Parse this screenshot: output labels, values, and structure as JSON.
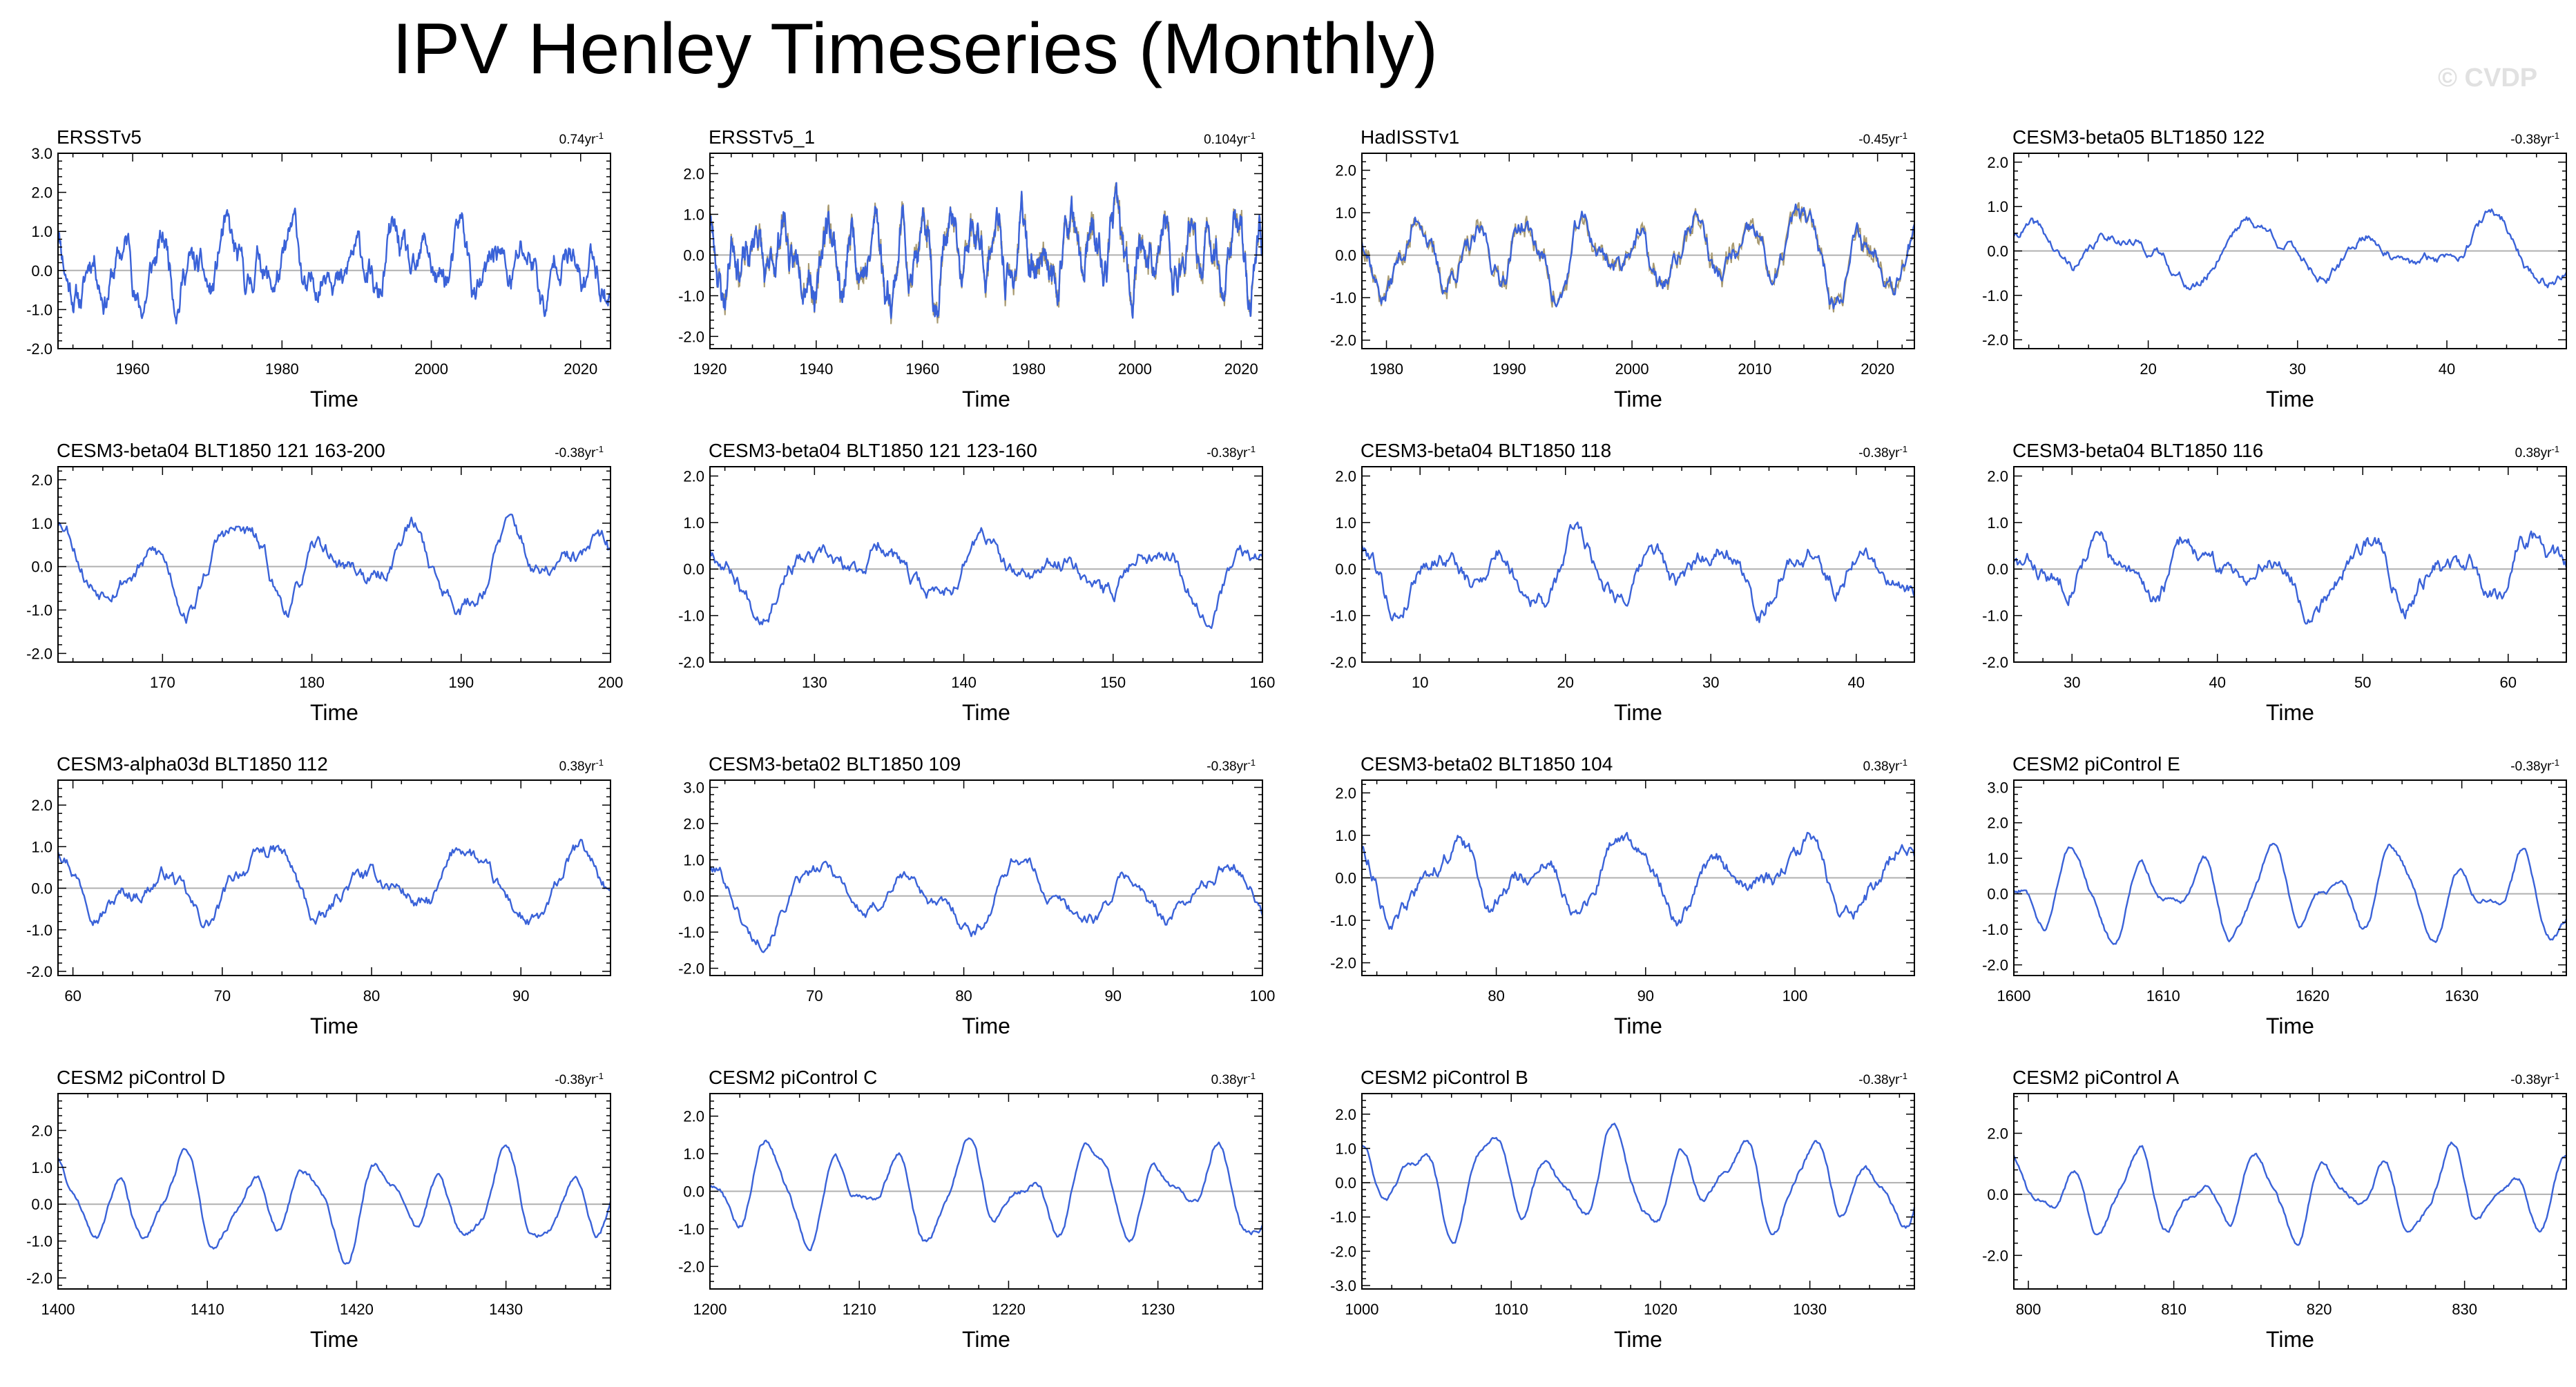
{
  "title": "IPV Henley Timeseries (Monthly)",
  "watermark": "© CVDP",
  "colors": {
    "series": "#3a62d8",
    "obs_secondary": "#a89a70",
    "zero_line": "#b0b0b0",
    "axis": "#000000"
  },
  "chart_data": [
    {
      "type": "line",
      "title": "ERSSTv5",
      "trend": "0.74yr",
      "trend_sup": "-1",
      "xlabel": "Time",
      "xlim": [
        1950,
        2024
      ],
      "ylim": [
        -2,
        3
      ],
      "xticks": [
        1960,
        1980,
        2000,
        2020
      ],
      "yticks": [
        -2,
        -1,
        0,
        1,
        2,
        3
      ],
      "ytick_labels": [
        "-2.0",
        "-1.0",
        "0.0",
        "1.0",
        "2.0",
        "3.0"
      ],
      "seed": 11,
      "amp": 0.65,
      "noise": 0.55,
      "mean_period": 4.5,
      "secondary": false
    },
    {
      "type": "line",
      "title": "ERSSTv5_1",
      "trend": "0.104yr",
      "trend_sup": "-1",
      "xlabel": "Time",
      "xlim": [
        1920,
        2024
      ],
      "ylim": [
        -2.3,
        2.5
      ],
      "xticks": [
        1920,
        1940,
        1960,
        1980,
        2000,
        2020
      ],
      "yticks": [
        -2,
        -1,
        0,
        1,
        2
      ],
      "ytick_labels": [
        "-2.0",
        "-1.0",
        "0.0",
        "1.0",
        "2.0"
      ],
      "seed": 23,
      "amp": 0.75,
      "noise": 0.6,
      "mean_period": 4.5,
      "secondary": true
    },
    {
      "type": "line",
      "title": "HadISSTv1",
      "trend": "-0.45yr",
      "trend_sup": "-1",
      "xlabel": "Time",
      "xlim": [
        1978,
        2023
      ],
      "ylim": [
        -2.2,
        2.4
      ],
      "xticks": [
        1980,
        1990,
        2000,
        2010,
        2020
      ],
      "yticks": [
        -2,
        -1,
        0,
        1,
        2
      ],
      "ytick_labels": [
        "-2.0",
        "-1.0",
        "0.0",
        "1.0",
        "2.0"
      ],
      "seed": 37,
      "amp": 0.7,
      "noise": 0.4,
      "mean_period": 4.5,
      "secondary": true
    },
    {
      "type": "line",
      "title": "CESM3-beta05 BLT1850 122",
      "trend": "-0.38yr",
      "trend_sup": "-1",
      "xlabel": "Time",
      "xlim": [
        11,
        48
      ],
      "ylim": [
        -2.2,
        2.2
      ],
      "xticks": [
        20,
        30,
        40
      ],
      "yticks": [
        -2,
        -1,
        0,
        1,
        2
      ],
      "ytick_labels": [
        "-2.0",
        "-1.0",
        "0.0",
        "1.0",
        "2.0"
      ],
      "seed": 41,
      "amp": 0.6,
      "noise": 0.18,
      "mean_period": 8,
      "secondary": false
    },
    {
      "type": "line",
      "title": "CESM3-beta04 BLT1850 121 163-200",
      "trend": "-0.38yr",
      "trend_sup": "-1",
      "xlabel": "Time",
      "xlim": [
        163,
        200
      ],
      "ylim": [
        -2.2,
        2.3
      ],
      "xticks": [
        170,
        180,
        190,
        200
      ],
      "yticks": [
        -2,
        -1,
        0,
        1,
        2
      ],
      "ytick_labels": [
        "-2.0",
        "-1.0",
        "0.0",
        "1.0",
        "2.0"
      ],
      "seed": 53,
      "amp": 0.75,
      "noise": 0.3,
      "mean_period": 6,
      "secondary": false
    },
    {
      "type": "line",
      "title": "CESM3-beta04 BLT1850 121 123-160",
      "trend": "-0.38yr",
      "trend_sup": "-1",
      "xlabel": "Time",
      "xlim": [
        123,
        160
      ],
      "ylim": [
        -2.0,
        2.2
      ],
      "xticks": [
        130,
        140,
        150,
        160
      ],
      "yticks": [
        -2,
        -1,
        0,
        1,
        2
      ],
      "ytick_labels": [
        "-2.0",
        "-1.0",
        "0.0",
        "1.0",
        "2.0"
      ],
      "seed": 67,
      "amp": 0.55,
      "noise": 0.28,
      "mean_period": 6,
      "secondary": false
    },
    {
      "type": "line",
      "title": "CESM3-beta04 BLT1850 118",
      "trend": "-0.38yr",
      "trend_sup": "-1",
      "xlabel": "Time",
      "xlim": [
        6,
        44
      ],
      "ylim": [
        -2.0,
        2.2
      ],
      "xticks": [
        10,
        20,
        30,
        40
      ],
      "yticks": [
        -2,
        -1,
        0,
        1,
        2
      ],
      "ytick_labels": [
        "-2.0",
        "-1.0",
        "0.0",
        "1.0",
        "2.0"
      ],
      "seed": 79,
      "amp": 0.6,
      "noise": 0.3,
      "mean_period": 5,
      "secondary": false
    },
    {
      "type": "line",
      "title": "CESM3-beta04 BLT1850 116",
      "trend": "0.38yr",
      "trend_sup": "-1",
      "xlabel": "Time",
      "xlim": [
        26,
        64
      ],
      "ylim": [
        -2.0,
        2.2
      ],
      "xticks": [
        30,
        40,
        50,
        60
      ],
      "yticks": [
        -2,
        -1,
        0,
        1,
        2
      ],
      "ytick_labels": [
        "-2.0",
        "-1.0",
        "0.0",
        "1.0",
        "2.0"
      ],
      "seed": 83,
      "amp": 0.55,
      "noise": 0.3,
      "mean_period": 6,
      "secondary": false
    },
    {
      "type": "line",
      "title": "CESM3-alpha03d BLT1850 112",
      "trend": "0.38yr",
      "trend_sup": "-1",
      "xlabel": "Time",
      "xlim": [
        59,
        96
      ],
      "ylim": [
        -2.1,
        2.6
      ],
      "xticks": [
        60,
        70,
        80,
        90
      ],
      "yticks": [
        -2,
        -1,
        0,
        1,
        2
      ],
      "ytick_labels": [
        "-2.0",
        "-1.0",
        "0.0",
        "1.0",
        "2.0"
      ],
      "seed": 97,
      "amp": 0.75,
      "noise": 0.28,
      "mean_period": 7,
      "secondary": false
    },
    {
      "type": "line",
      "title": "CESM3-beta02 BLT1850 109",
      "trend": "-0.38yr",
      "trend_sup": "-1",
      "xlabel": "Time",
      "xlim": [
        63,
        100
      ],
      "ylim": [
        -2.2,
        3.2
      ],
      "xticks": [
        70,
        80,
        90,
        100
      ],
      "yticks": [
        -2,
        -1,
        0,
        1,
        2,
        3
      ],
      "ytick_labels": [
        "-2.0",
        "-1.0",
        "0.0",
        "1.0",
        "2.0",
        "3.0"
      ],
      "seed": 101,
      "amp": 0.8,
      "noise": 0.28,
      "mean_period": 7,
      "secondary": false
    },
    {
      "type": "line",
      "title": "CESM3-beta02 BLT1850 104",
      "trend": "0.38yr",
      "trend_sup": "-1",
      "xlabel": "Time",
      "xlim": [
        71,
        108
      ],
      "ylim": [
        -2.3,
        2.3
      ],
      "xticks": [
        80,
        90,
        100
      ],
      "yticks": [
        -2,
        -1,
        0,
        1,
        2
      ],
      "ytick_labels": [
        "-2.0",
        "-1.0",
        "0.0",
        "1.0",
        "2.0"
      ],
      "seed": 113,
      "amp": 0.65,
      "noise": 0.3,
      "mean_period": 6,
      "secondary": false
    },
    {
      "type": "line",
      "title": "CESM2 piControl E",
      "trend": "-0.38yr",
      "trend_sup": "-1",
      "xlabel": "Time",
      "xlim": [
        1600,
        1637
      ],
      "ylim": [
        -2.3,
        3.2
      ],
      "xticks": [
        1600,
        1610,
        1620,
        1630
      ],
      "yticks": [
        -2,
        -1,
        0,
        1,
        2,
        3
      ],
      "ytick_labels": [
        "-2.0",
        "-1.0",
        "0.0",
        "1.0",
        "2.0",
        "3.0"
      ],
      "seed": 127,
      "amp": 1.1,
      "noise": 0.12,
      "mean_period": 4.3,
      "secondary": false
    },
    {
      "type": "line",
      "title": "CESM2 piControl D",
      "trend": "-0.38yr",
      "trend_sup": "-1",
      "xlabel": "Time",
      "xlim": [
        1400,
        1437
      ],
      "ylim": [
        -2.3,
        3.0
      ],
      "xticks": [
        1400,
        1410,
        1420,
        1430
      ],
      "yticks": [
        -2,
        -1,
        0,
        1,
        2
      ],
      "ytick_labels": [
        "-2.0",
        "-1.0",
        "0.0",
        "1.0",
        "2.0"
      ],
      "seed": 131,
      "amp": 1.1,
      "noise": 0.12,
      "mean_period": 4.3,
      "secondary": false
    },
    {
      "type": "line",
      "title": "CESM2 piControl C",
      "trend": "0.38yr",
      "trend_sup": "-1",
      "xlabel": "Time",
      "xlim": [
        1200,
        1237
      ],
      "ylim": [
        -2.6,
        2.6
      ],
      "xticks": [
        1200,
        1210,
        1220,
        1230
      ],
      "yticks": [
        -2,
        -1,
        0,
        1,
        2
      ],
      "ytick_labels": [
        "-2.0",
        "-1.0",
        "0.0",
        "1.0",
        "2.0"
      ],
      "seed": 149,
      "amp": 1.1,
      "noise": 0.12,
      "mean_period": 4.3,
      "secondary": false
    },
    {
      "type": "line",
      "title": "CESM2 piControl B",
      "trend": "-0.38yr",
      "trend_sup": "-1",
      "xlabel": "Time",
      "xlim": [
        1000,
        1037
      ],
      "ylim": [
        -3.1,
        2.6
      ],
      "xticks": [
        1000,
        1010,
        1020,
        1030
      ],
      "yticks": [
        -3,
        -2,
        -1,
        0,
        1,
        2
      ],
      "ytick_labels": [
        "-3.0",
        "-2.0",
        "-1.0",
        "0.0",
        "1.0",
        "2.0"
      ],
      "seed": 151,
      "amp": 1.2,
      "noise": 0.12,
      "mean_period": 4.3,
      "secondary": false
    },
    {
      "type": "line",
      "title": "CESM2 piControl A",
      "trend": "-0.38yr",
      "trend_sup": "-1",
      "xlabel": "Time",
      "xlim": [
        799,
        837
      ],
      "ylim": [
        -3.1,
        3.3
      ],
      "xticks": [
        800,
        810,
        820,
        830
      ],
      "yticks": [
        -2,
        0,
        2
      ],
      "ytick_labels": [
        "-2.0",
        "0.0",
        "2.0"
      ],
      "seed": 163,
      "amp": 1.2,
      "noise": 0.12,
      "mean_period": 4.3,
      "secondary": false
    }
  ]
}
